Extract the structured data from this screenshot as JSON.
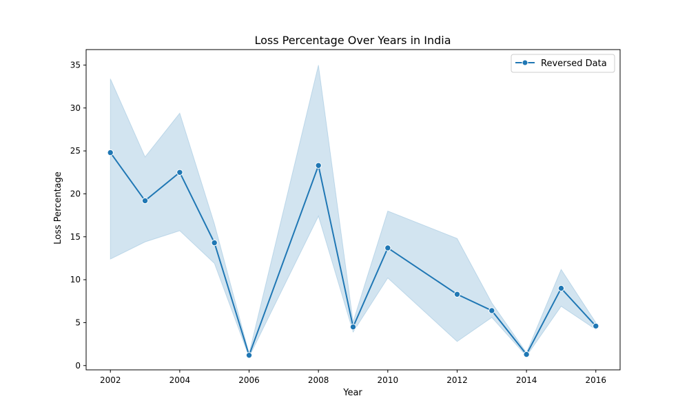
{
  "chart_data": {
    "type": "line",
    "title": "Loss Percentage Over Years in India",
    "xlabel": "Year",
    "ylabel": "Loss Percentage",
    "xlim": [
      2001.3,
      2016.7
    ],
    "ylim": [
      -0.5,
      36.8
    ],
    "xticks": [
      2002,
      2004,
      2006,
      2008,
      2010,
      2012,
      2014,
      2016
    ],
    "yticks": [
      0,
      5,
      10,
      15,
      20,
      25,
      30,
      35
    ],
    "grid": false,
    "legend": "top-right",
    "series": [
      {
        "name": "Reversed Data",
        "color": "#1f77b4",
        "marker": "circle",
        "x": [
          2002,
          2003,
          2004,
          2005,
          2006,
          2008,
          2009,
          2010,
          2012,
          2013,
          2014,
          2015,
          2016
        ],
        "y": [
          24.8,
          19.2,
          22.5,
          14.3,
          1.2,
          23.3,
          4.5,
          13.7,
          8.3,
          6.4,
          1.3,
          9.0,
          4.6
        ],
        "ci_lower": [
          12.4,
          14.4,
          15.7,
          11.9,
          1.0,
          17.4,
          3.9,
          10.2,
          2.8,
          5.6,
          1.1,
          6.9,
          4.2
        ],
        "ci_upper": [
          33.4,
          24.3,
          29.4,
          16.5,
          1.4,
          35.0,
          5.1,
          18.0,
          14.8,
          7.3,
          1.5,
          11.2,
          5.0
        ]
      }
    ]
  }
}
